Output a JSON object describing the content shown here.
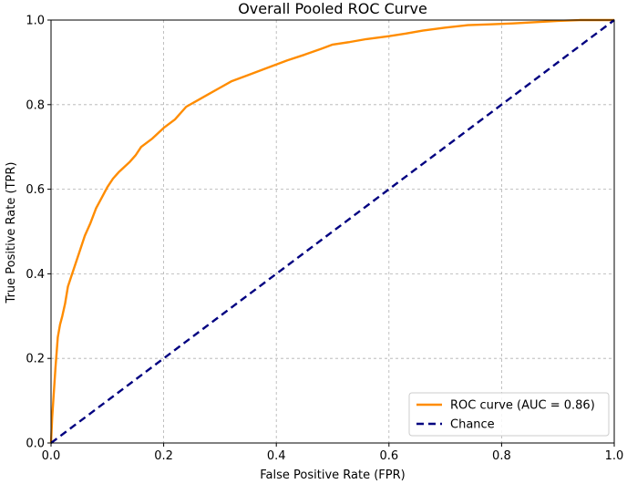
{
  "chart_data": {
    "type": "line",
    "title": "Overall Pooled ROC Curve",
    "xlabel": "False Positive Rate (FPR)",
    "ylabel": "True Positive Rate (TPR)",
    "xlim": [
      0.0,
      1.0
    ],
    "ylim": [
      0.0,
      1.0
    ],
    "xticks": [
      "0.0",
      "0.2",
      "0.4",
      "0.6",
      "0.8",
      "1.0"
    ],
    "yticks": [
      "0.0",
      "0.2",
      "0.4",
      "0.6",
      "0.8",
      "1.0"
    ],
    "grid": true,
    "grid_style": "dashed",
    "legend_position": "lower-right",
    "series": [
      {
        "name": "ROC curve (AUC = 0.86)",
        "color": "#ff8c00",
        "style": "solid",
        "x": [
          0.0,
          0.002,
          0.005,
          0.008,
          0.012,
          0.016,
          0.02,
          0.025,
          0.03,
          0.035,
          0.04,
          0.05,
          0.06,
          0.07,
          0.08,
          0.09,
          0.1,
          0.11,
          0.12,
          0.14,
          0.15,
          0.16,
          0.18,
          0.2,
          0.22,
          0.24,
          0.26,
          0.28,
          0.3,
          0.32,
          0.35,
          0.38,
          0.4,
          0.42,
          0.45,
          0.48,
          0.5,
          0.53,
          0.56,
          0.6,
          0.63,
          0.66,
          0.7,
          0.74,
          0.78,
          0.82,
          0.86,
          0.9,
          0.94,
          0.97,
          1.0
        ],
        "y": [
          0.0,
          0.06,
          0.12,
          0.18,
          0.25,
          0.28,
          0.3,
          0.33,
          0.37,
          0.39,
          0.41,
          0.45,
          0.49,
          0.52,
          0.555,
          0.58,
          0.605,
          0.625,
          0.64,
          0.665,
          0.68,
          0.7,
          0.72,
          0.745,
          0.765,
          0.795,
          0.81,
          0.825,
          0.84,
          0.855,
          0.87,
          0.885,
          0.895,
          0.905,
          0.918,
          0.932,
          0.942,
          0.948,
          0.955,
          0.962,
          0.968,
          0.975,
          0.982,
          0.988,
          0.99,
          0.992,
          0.995,
          0.998,
          1.0,
          1.0,
          1.0
        ]
      },
      {
        "name": "Chance",
        "color": "#000080",
        "style": "dashed",
        "x": [
          0.0,
          1.0
        ],
        "y": [
          0.0,
          1.0
        ]
      }
    ]
  }
}
